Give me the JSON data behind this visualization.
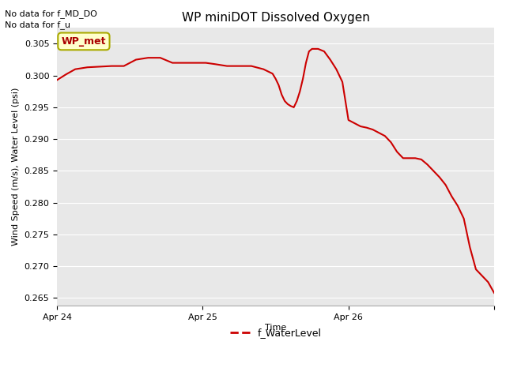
{
  "title": "WP miniDOT Dissolved Oxygen",
  "ylabel": "Wind Speed (m/s), Water Level (psi)",
  "xlabel": "Time",
  "no_data_texts": [
    "No data for f_MD_DO",
    "No data for f_u"
  ],
  "legend_label": "f_WaterLevel",
  "legend_color": "#cc0000",
  "wp_met_label": "WP_met",
  "wp_met_bg": "#ffffcc",
  "wp_met_border": "#aaaa00",
  "wp_met_text_color": "#aa0000",
  "line_color": "#cc0000",
  "bg_color": "#e8e8e8",
  "fig_bg_color": "#ffffff",
  "ylim": [
    0.2638,
    0.3075
  ],
  "yticks": [
    0.265,
    0.27,
    0.275,
    0.28,
    0.285,
    0.29,
    0.295,
    0.3,
    0.305
  ],
  "xlim": [
    0,
    72
  ],
  "xtick_positions": [
    0,
    24,
    48,
    72
  ],
  "xtick_labels": [
    "Apr 24",
    "Apr 25",
    "Apr 26",
    ""
  ],
  "time_data": [
    0.0,
    1.5,
    3.0,
    5.0,
    7.0,
    9.0,
    11.0,
    13.0,
    15.0,
    17.0,
    19.0,
    21.0,
    23.0,
    24.5,
    26.0,
    28.0,
    30.0,
    32.0,
    34.0,
    35.5,
    36.0,
    36.5,
    37.0,
    37.5,
    38.0,
    38.5,
    39.0,
    39.5,
    40.0,
    40.5,
    41.0,
    41.5,
    42.0,
    43.0,
    44.0,
    45.0,
    46.0,
    47.0,
    48.0,
    49.0,
    50.0,
    51.0,
    52.0,
    53.0,
    54.0,
    55.0,
    56.0,
    57.0,
    58.0,
    59.0,
    60.0,
    61.0,
    62.0,
    63.0,
    64.0,
    65.0,
    66.0,
    67.0,
    68.0,
    69.0,
    70.0,
    71.0,
    72.0
  ],
  "y_data": [
    0.2993,
    0.3002,
    0.301,
    0.3013,
    0.3014,
    0.3015,
    0.3015,
    0.3025,
    0.3028,
    0.3028,
    0.302,
    0.302,
    0.302,
    0.302,
    0.3018,
    0.3015,
    0.3015,
    0.3015,
    0.301,
    0.3003,
    0.2995,
    0.2985,
    0.297,
    0.296,
    0.2955,
    0.2952,
    0.295,
    0.296,
    0.2975,
    0.2995,
    0.302,
    0.3038,
    0.3042,
    0.3042,
    0.3038,
    0.3025,
    0.301,
    0.299,
    0.293,
    0.2925,
    0.292,
    0.2918,
    0.2915,
    0.291,
    0.2905,
    0.2895,
    0.288,
    0.287,
    0.287,
    0.287,
    0.2868,
    0.286,
    0.285,
    0.284,
    0.2828,
    0.281,
    0.2795,
    0.2775,
    0.273,
    0.2695,
    0.2685,
    0.2675,
    0.2658
  ],
  "grid_color": "#ffffff",
  "grid_linewidth": 0.8,
  "line_linewidth": 1.5,
  "title_fontsize": 11,
  "label_fontsize": 8,
  "tick_fontsize": 8,
  "legend_fontsize": 9,
  "nodata_fontsize": 8
}
